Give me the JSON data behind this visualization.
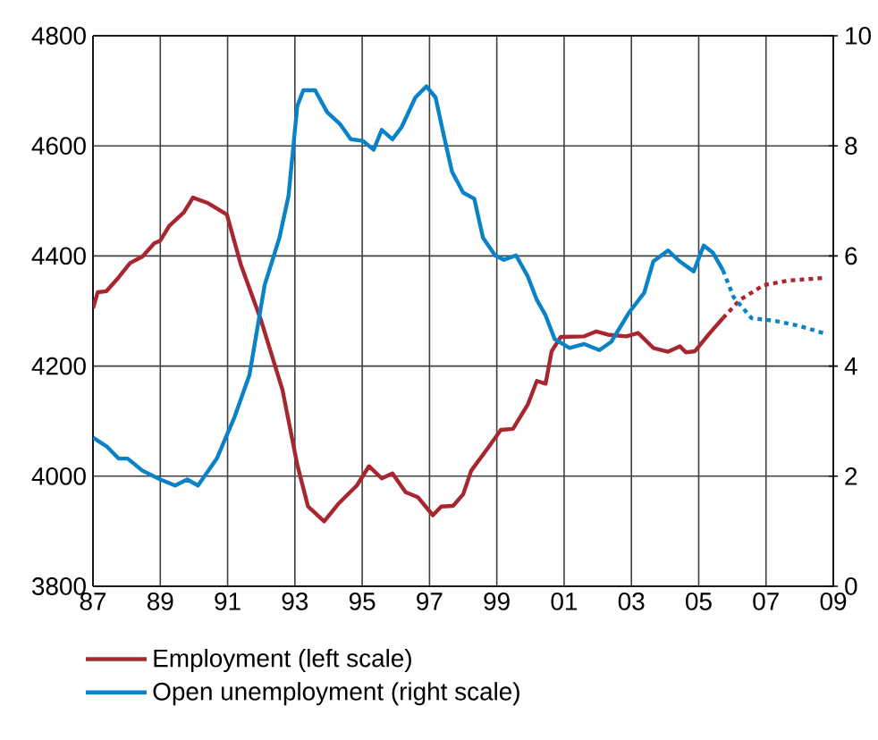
{
  "chart_data": {
    "type": "line",
    "xlim": [
      1987,
      2009
    ],
    "xticks": [
      {
        "value": 1987,
        "label": "87"
      },
      {
        "value": 1989,
        "label": "89"
      },
      {
        "value": 1991,
        "label": "91"
      },
      {
        "value": 1993,
        "label": "93"
      },
      {
        "value": 1995,
        "label": "95"
      },
      {
        "value": 1997,
        "label": "97"
      },
      {
        "value": 1999,
        "label": "99"
      },
      {
        "value": 2001,
        "label": "01"
      },
      {
        "value": 2003,
        "label": "03"
      },
      {
        "value": 2005,
        "label": "05"
      },
      {
        "value": 2007,
        "label": "07"
      },
      {
        "value": 2009,
        "label": "09"
      }
    ],
    "ylim": [
      3800,
      4800
    ],
    "yticks": [
      3800,
      4000,
      4200,
      4400,
      4600,
      4800
    ],
    "y2lim": [
      0,
      10
    ],
    "y2ticks": [
      0,
      2,
      4,
      6,
      8,
      10
    ],
    "grid": true,
    "legend": "bottom",
    "series": [
      {
        "name": "Employment (left scale)",
        "color": "#a8262e",
        "axis": "y",
        "line_style": "solid",
        "x": [
          1987.0,
          1987.14,
          1987.4,
          1987.76,
          1988.1,
          1988.47,
          1988.82,
          1989.0,
          1989.27,
          1989.7,
          1989.97,
          1990.42,
          1990.98,
          1991.39,
          1992.0,
          1992.63,
          1993.07,
          1993.39,
          1993.87,
          1994.31,
          1994.84,
          1995.2,
          1995.58,
          1995.9,
          1996.29,
          1996.65,
          1997.1,
          1997.35,
          1997.7,
          1998.0,
          1998.24,
          1998.77,
          1999.12,
          1999.48,
          1999.92,
          2000.19,
          2000.45,
          2000.63,
          2000.9,
          2001.6,
          2001.96,
          2002.3,
          2002.85,
          2003.2,
          2003.65,
          2004.09,
          2004.44,
          2004.62,
          2004.89,
          2005.33,
          2005.72
        ],
        "values": [
          4305,
          4334,
          4336,
          4361,
          4387,
          4399,
          4423,
          4428,
          4455,
          4479,
          4506,
          4496,
          4475,
          4385,
          4282,
          4157,
          4021,
          3945,
          3918,
          3951,
          3983,
          4018,
          3996,
          4005,
          3971,
          3962,
          3929,
          3945,
          3946,
          3967,
          4010,
          4054,
          4084,
          4086,
          4130,
          4173,
          4168,
          4227,
          4253,
          4254,
          4263,
          4257,
          4254,
          4260,
          4233,
          4226,
          4236,
          4225,
          4227,
          4260,
          4287
        ]
      },
      {
        "color": "#a8262e",
        "axis": "y",
        "line_style": "dotted",
        "x": [
          2005.72,
          2006.22,
          2006.93,
          2007.63,
          2008.7
        ],
        "values": [
          4287,
          4320,
          4347,
          4355,
          4360
        ]
      },
      {
        "name": "Open unemployment (right scale)",
        "color": "#0a82c8",
        "axis": "y2",
        "line_style": "solid",
        "x": [
          1987.0,
          1987.41,
          1987.76,
          1988.03,
          1988.47,
          1989.0,
          1989.44,
          1989.8,
          1990.12,
          1990.68,
          1991.21,
          1991.65,
          1992.1,
          1992.54,
          1992.81,
          1993.07,
          1993.25,
          1993.6,
          1993.96,
          1994.35,
          1994.66,
          1995.02,
          1995.34,
          1995.58,
          1995.9,
          1996.17,
          1996.58,
          1996.91,
          1997.18,
          1997.41,
          1997.67,
          1998.0,
          1998.33,
          1998.59,
          1998.95,
          1999.21,
          1999.57,
          1999.92,
          2000.19,
          2000.45,
          2000.72,
          2001.16,
          2001.6,
          2002.05,
          2002.4,
          2002.94,
          2003.38,
          2003.65,
          2004.09,
          2004.44,
          2004.85,
          2005.15,
          2005.42,
          2005.72
        ],
        "values": [
          2.7,
          2.54,
          2.32,
          2.32,
          2.1,
          1.94,
          1.83,
          1.94,
          1.83,
          2.32,
          3.08,
          3.84,
          5.47,
          6.33,
          7.09,
          8.72,
          9.01,
          9.01,
          8.61,
          8.39,
          8.12,
          8.09,
          7.93,
          8.29,
          8.12,
          8.34,
          8.88,
          9.08,
          8.88,
          8.23,
          7.53,
          7.15,
          7.04,
          6.33,
          6.01,
          5.93,
          6.01,
          5.63,
          5.2,
          4.92,
          4.49,
          4.33,
          4.4,
          4.29,
          4.44,
          4.98,
          5.33,
          5.9,
          6.1,
          5.9,
          5.72,
          6.19,
          6.06,
          5.74
        ]
      },
      {
        "color": "#0a82c8",
        "axis": "y2",
        "line_style": "dotted",
        "x": [
          2005.72,
          2006.04,
          2006.57,
          2007.28,
          2007.99,
          2008.7
        ],
        "values": [
          5.74,
          5.25,
          4.87,
          4.82,
          4.73,
          4.6
        ]
      }
    ]
  }
}
